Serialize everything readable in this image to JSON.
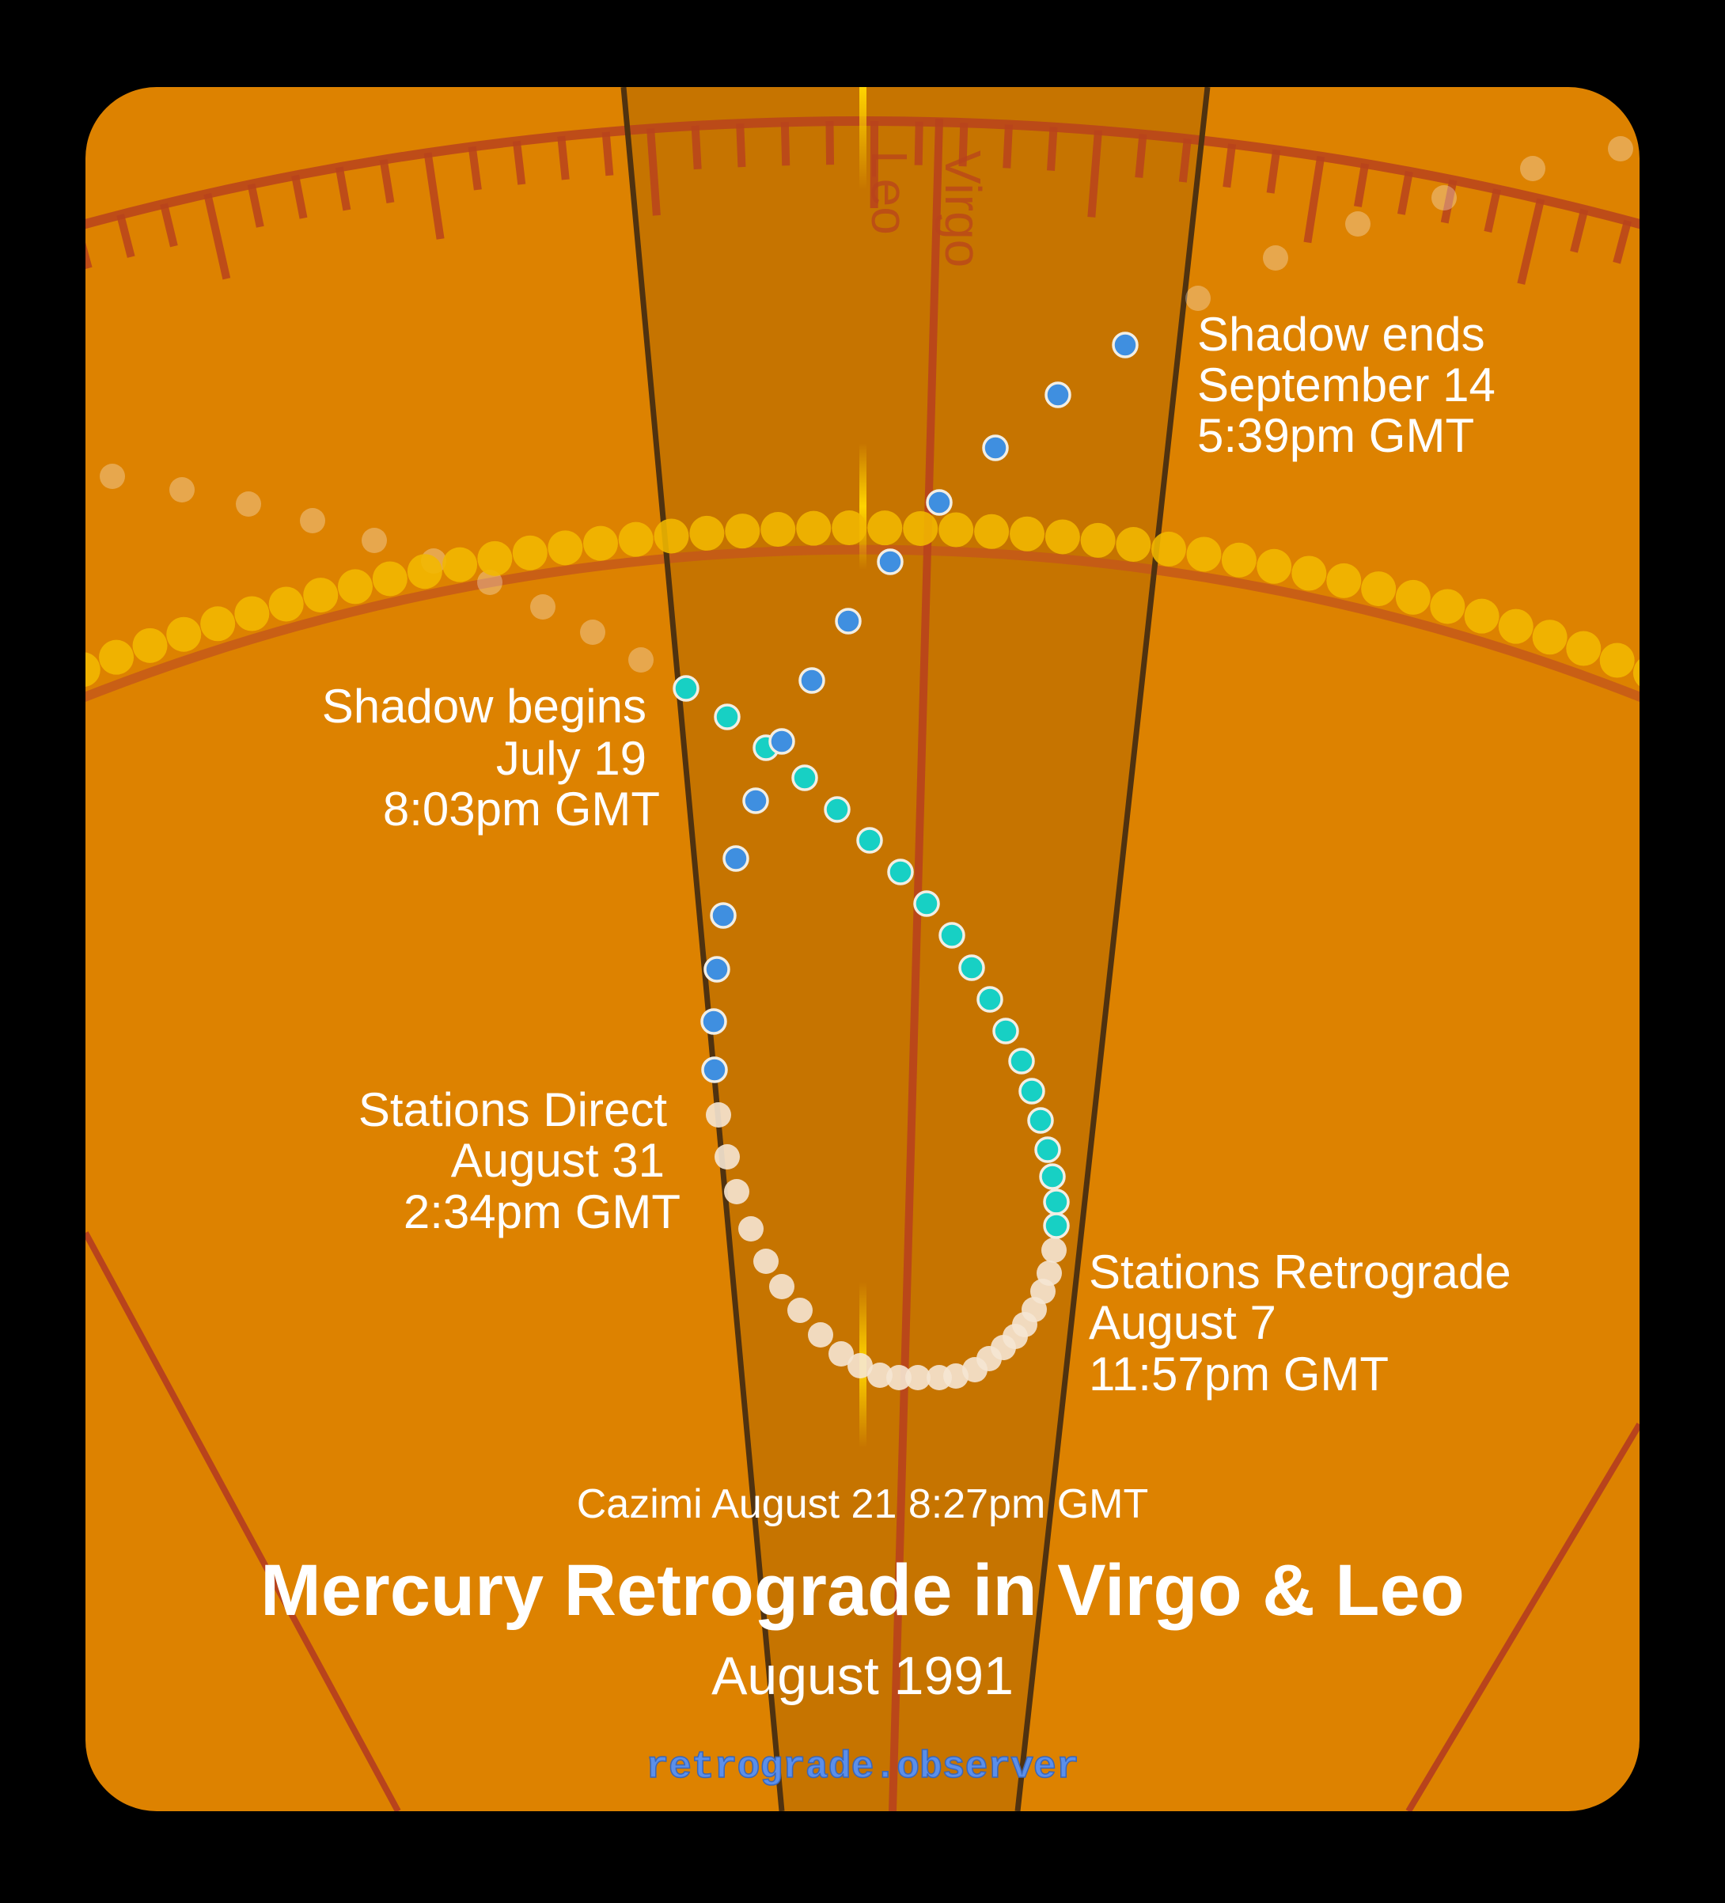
{
  "chart_data": {
    "type": "scatter",
    "title": "Mercury Retrograde in Virgo & Leo",
    "subtitle": "August 1991",
    "signs": [
      "Leo",
      "Virgo"
    ],
    "annotations": {
      "shadow_begins": [
        "Shadow begins",
        "July 19",
        "8:03pm GMT"
      ],
      "stations_retrograde": [
        "Stations Retrograde",
        "August 7",
        "11:57pm GMT"
      ],
      "cazimi": "Cazimi August 21 8:27pm GMT",
      "stations_direct": [
        "Stations Direct",
        "August 31",
        "2:34pm GMT"
      ],
      "shadow_ends": [
        "Shadow ends",
        "September 14",
        "5:39pm GMT"
      ]
    },
    "series": [
      {
        "name": "pre-shadow (direct, entering shadow)",
        "color": "#17D0C4",
        "points": [
          [
            867,
            870
          ],
          [
            919,
            906
          ],
          [
            968,
            945
          ],
          [
            1017,
            983
          ],
          [
            1058,
            1023
          ],
          [
            1099,
            1062
          ],
          [
            1138,
            1102
          ],
          [
            1171,
            1142
          ],
          [
            1203,
            1182
          ],
          [
            1228,
            1223
          ],
          [
            1251,
            1263
          ],
          [
            1271,
            1303
          ],
          [
            1291,
            1341
          ],
          [
            1304,
            1379
          ],
          [
            1315,
            1416
          ],
          [
            1324,
            1453
          ],
          [
            1330,
            1487
          ],
          [
            1335,
            1519
          ],
          [
            1335,
            1549
          ]
        ]
      },
      {
        "name": "retrograde",
        "color": "#F5E6D3",
        "points": [
          [
            1335,
            1549
          ],
          [
            1332,
            1580
          ],
          [
            1326,
            1609
          ],
          [
            1318,
            1632
          ],
          [
            1307,
            1655
          ],
          [
            1295,
            1674
          ],
          [
            1283,
            1689
          ],
          [
            1268,
            1703
          ],
          [
            1250,
            1717
          ],
          [
            1232,
            1731
          ],
          [
            1208,
            1739
          ],
          [
            1187,
            1741
          ],
          [
            1160,
            1741
          ],
          [
            1136,
            1741
          ],
          [
            1112,
            1738
          ],
          [
            1087,
            1726
          ],
          [
            1063,
            1711
          ],
          [
            1037,
            1687
          ],
          [
            1011,
            1656
          ],
          [
            988,
            1626
          ],
          [
            968,
            1594
          ],
          [
            949,
            1553
          ],
          [
            931,
            1506
          ],
          [
            919,
            1462
          ],
          [
            908,
            1409
          ]
        ]
      },
      {
        "name": "post-shadow (direct, leaving shadow)",
        "color": "#3F8FE0",
        "points": [
          [
            903,
            1352
          ],
          [
            902,
            1291
          ],
          [
            906,
            1225
          ],
          [
            914,
            1157
          ],
          [
            930,
            1085
          ],
          [
            955,
            1012
          ],
          [
            988,
            937
          ],
          [
            1026,
            860
          ],
          [
            1072,
            785
          ],
          [
            1125,
            710
          ],
          [
            1187,
            635
          ],
          [
            1258,
            566
          ],
          [
            1337,
            499
          ],
          [
            1422,
            436
          ]
        ]
      },
      {
        "name": "sun path",
        "color": "#F2B800"
      }
    ]
  },
  "labels": {
    "leo": "Leo",
    "virgo": "Virgo",
    "shadow_ends": [
      "Shadow ends",
      "September 14",
      "5:39pm GMT"
    ],
    "shadow_begins": [
      "Shadow begins",
      "July 19",
      "8:03pm GMT"
    ],
    "stations_direct": [
      "Stations Direct",
      "August 31",
      "2:34pm GMT"
    ],
    "stations_retrograde": [
      "Stations Retrograde",
      "August 7",
      "11:57pm GMT"
    ],
    "cazimi": "Cazimi August 21 8:27pm GMT",
    "title": "Mercury Retrograde in Virgo & Leo",
    "subtitle": "August 1991",
    "url": "retrograde.observer"
  },
  "colors": {
    "background": "#000000",
    "panel": "#DD8200",
    "band": "#C67500",
    "boundary_dark": "#4F3210",
    "red_line": "#B8431C",
    "sun_dot": "#F2B800",
    "blue_dot": "#3F8FE0",
    "teal_dot": "#17D0C4",
    "retro_dot": "#F5E6D3",
    "url": "#5B8FEA"
  }
}
